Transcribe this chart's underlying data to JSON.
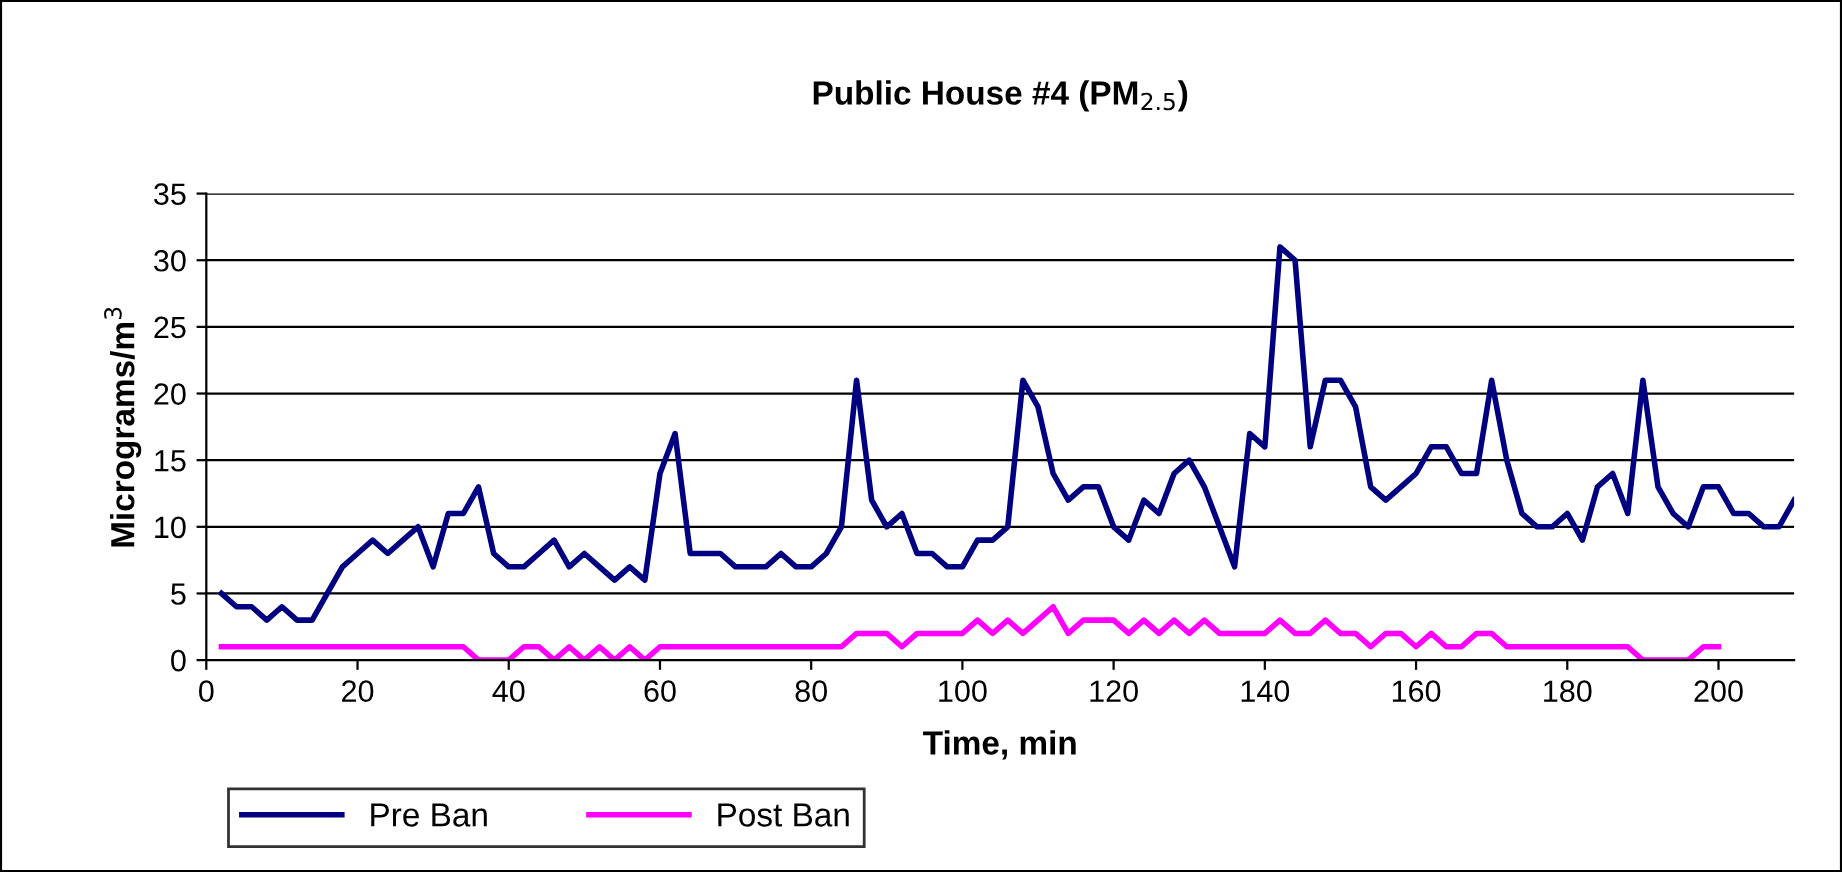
{
  "chart_data": {
    "type": "line",
    "title": "Public House #4 (PM$_{2.5}$)",
    "xlabel": "Time, min",
    "ylabel": "Micrograms/m$^{3}$",
    "xlim": [
      0,
      210
    ],
    "xticks": [
      0,
      20,
      40,
      60,
      80,
      100,
      120,
      140,
      160,
      180,
      200
    ],
    "ylim": [
      0,
      35
    ],
    "yticks": [
      0,
      5,
      10,
      15,
      20,
      25,
      30,
      35
    ],
    "grid": "y",
    "legend": "bottom",
    "marker": "none",
    "line_style": "solid",
    "series": [
      {
        "name": "Pre Ban",
        "color": "#000080",
        "x": [
          2,
          4,
          6,
          8,
          10,
          12,
          14,
          16,
          18,
          20,
          22,
          24,
          26,
          28,
          30,
          32,
          34,
          36,
          38,
          40,
          42,
          44,
          46,
          48,
          50,
          52,
          54,
          56,
          58,
          60,
          62,
          64,
          66,
          68,
          70,
          72,
          74,
          76,
          78,
          80,
          82,
          84,
          86,
          88,
          90,
          92,
          94,
          96,
          98,
          100,
          102,
          104,
          106,
          108,
          110,
          112,
          114,
          116,
          118,
          120,
          122,
          124,
          126,
          128,
          130,
          132,
          134,
          136,
          138,
          140,
          142,
          144,
          146,
          148,
          150,
          152,
          154,
          156,
          158,
          160,
          162,
          164,
          166,
          168,
          170,
          172,
          174,
          176,
          178,
          180,
          182,
          184,
          186,
          188,
          190,
          192,
          194,
          196,
          198,
          200,
          202,
          204,
          206,
          208,
          210
        ],
        "values": [
          5,
          4,
          4,
          3,
          4,
          3,
          3,
          5,
          7,
          8,
          9,
          8,
          9,
          10,
          7,
          11,
          11,
          13,
          8,
          7,
          7,
          8,
          9,
          7,
          8,
          7,
          6,
          7,
          6,
          14,
          17,
          8,
          8,
          8,
          7,
          7,
          7,
          8,
          7,
          7,
          8,
          10,
          21,
          12,
          10,
          11,
          8,
          8,
          7,
          7,
          9,
          9,
          10,
          21,
          19,
          14,
          12,
          13,
          13,
          10,
          9,
          12,
          11,
          14,
          15,
          13,
          10,
          7,
          17,
          16,
          31,
          30,
          16,
          21,
          21,
          19,
          13,
          12,
          13,
          14,
          16,
          16,
          14,
          14,
          21,
          15,
          11,
          10,
          10,
          11,
          9,
          13,
          14,
          11,
          21,
          13,
          11,
          10,
          13,
          13,
          11,
          11,
          10,
          10,
          12
        ]
      },
      {
        "name": "Post Ban",
        "color": "#ff00ff",
        "x": [
          2,
          4,
          6,
          8,
          10,
          12,
          14,
          16,
          18,
          20,
          22,
          24,
          26,
          28,
          30,
          32,
          34,
          36,
          38,
          40,
          42,
          44,
          46,
          48,
          50,
          52,
          54,
          56,
          58,
          60,
          62,
          64,
          66,
          68,
          70,
          72,
          74,
          76,
          78,
          80,
          82,
          84,
          86,
          88,
          90,
          92,
          94,
          96,
          98,
          100,
          102,
          104,
          106,
          108,
          110,
          112,
          114,
          116,
          118,
          120,
          122,
          124,
          126,
          128,
          130,
          132,
          134,
          136,
          138,
          140,
          142,
          144,
          146,
          148,
          150,
          152,
          154,
          156,
          158,
          160,
          162,
          164,
          166,
          168,
          170,
          172,
          174,
          176,
          178,
          180,
          182,
          184,
          186,
          188,
          190,
          192,
          194,
          196,
          198,
          200
        ],
        "values": [
          1,
          1,
          1,
          1,
          1,
          1,
          1,
          1,
          1,
          1,
          1,
          1,
          1,
          1,
          1,
          1,
          1,
          0,
          0,
          0,
          1,
          1,
          0,
          1,
          0,
          1,
          0,
          1,
          0,
          1,
          1,
          1,
          1,
          1,
          1,
          1,
          1,
          1,
          1,
          1,
          1,
          1,
          2,
          2,
          2,
          1,
          2,
          2,
          2,
          2,
          3,
          2,
          3,
          2,
          3,
          4,
          2,
          3,
          3,
          3,
          2,
          3,
          2,
          3,
          2,
          3,
          2,
          2,
          2,
          2,
          3,
          2,
          2,
          3,
          2,
          2,
          1,
          2,
          2,
          1,
          2,
          1,
          1,
          2,
          2,
          1,
          1,
          1,
          1,
          1,
          1,
          1,
          1,
          1,
          0,
          0,
          0,
          0,
          1,
          1
        ]
      }
    ]
  }
}
